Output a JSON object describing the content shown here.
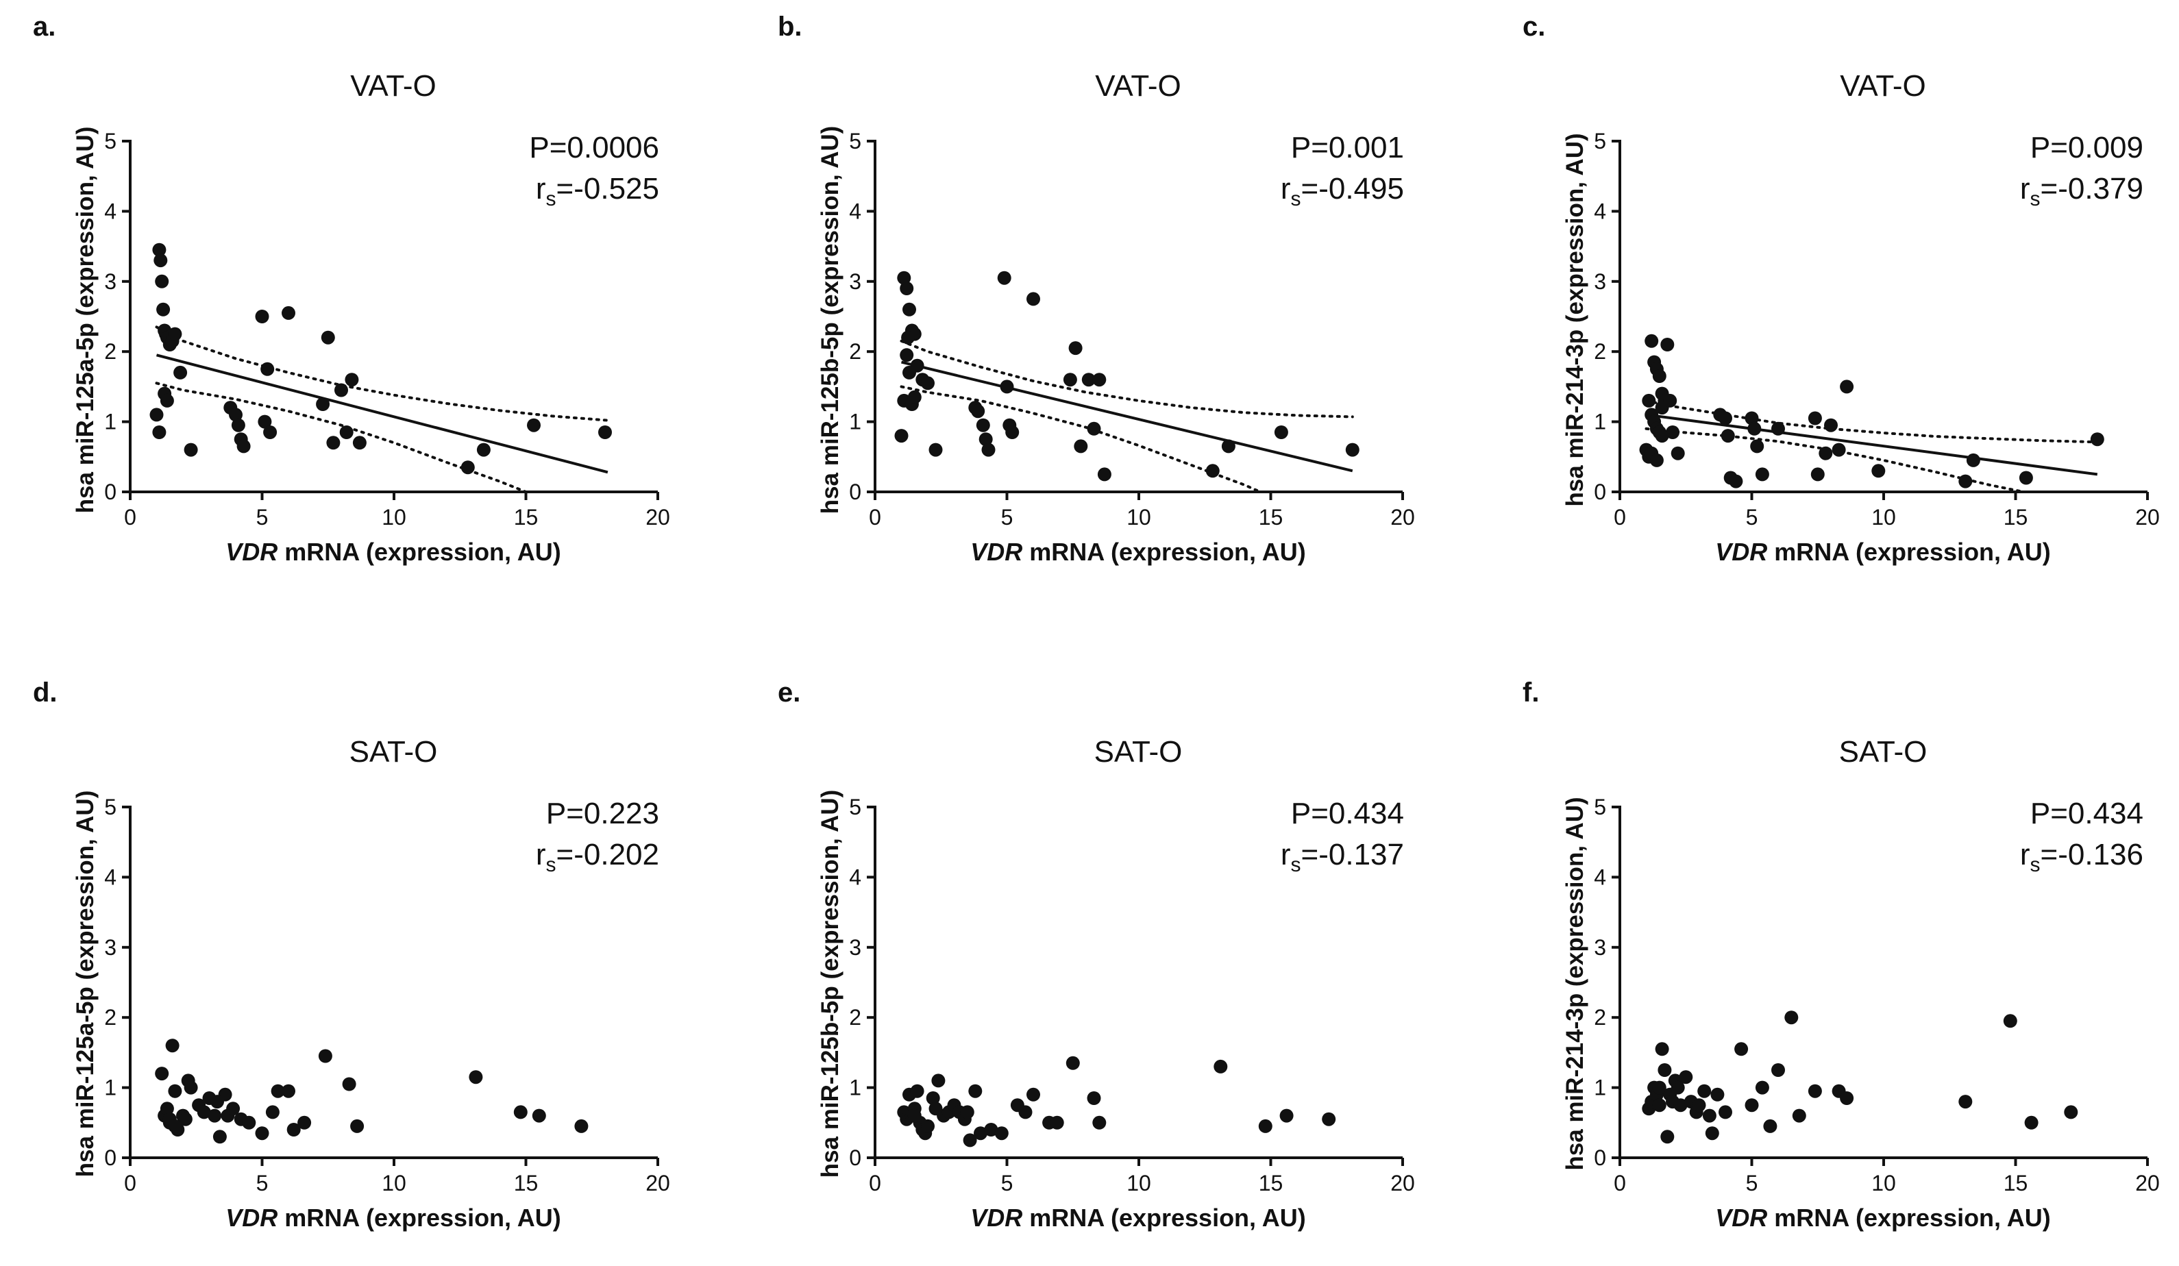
{
  "chart_data": [
    {
      "panel": "a.",
      "type": "scatter",
      "title": "VAT-O",
      "xlabel_italic": "VDR",
      "xlabel_rest": " mRNA (expression, AU)",
      "ylabel": "hsa miR-125a-5p (expression, AU)",
      "xlim": [
        0,
        20
      ],
      "ylim": [
        0,
        5
      ],
      "xticks": [
        0,
        5,
        10,
        15,
        20
      ],
      "yticks": [
        0,
        1,
        2,
        3,
        4,
        5
      ],
      "stat_p": "P=0.0006",
      "stat_r_main": "r",
      "stat_r_sub": "s",
      "stat_r_value": "=-0.525",
      "regression": {
        "x": [
          1.0,
          18.1
        ],
        "y": [
          1.95,
          0.28
        ]
      },
      "ci_upper": {
        "x": [
          1.0,
          2,
          4,
          6,
          8,
          10,
          12,
          14,
          16,
          18.1
        ],
        "y": [
          2.35,
          2.15,
          1.9,
          1.7,
          1.52,
          1.38,
          1.26,
          1.16,
          1.08,
          1.02
        ]
      },
      "ci_lower": {
        "x": [
          1.0,
          2,
          4,
          6,
          8,
          10,
          12,
          14,
          15.0
        ],
        "y": [
          1.55,
          1.45,
          1.32,
          1.15,
          0.95,
          0.7,
          0.42,
          0.15,
          0.0
        ]
      },
      "x": [
        1.1,
        1.15,
        1.2,
        1.25,
        1.3,
        1.35,
        1.4,
        1.45,
        1.5,
        1.6,
        1.7,
        1.0,
        1.1,
        1.3,
        1.4,
        1.9,
        2.3,
        3.8,
        4.0,
        4.1,
        4.2,
        4.3,
        5.0,
        5.1,
        5.2,
        5.3,
        6.0,
        7.3,
        7.5,
        7.7,
        8.0,
        8.2,
        8.4,
        8.7,
        12.8,
        13.4,
        15.3,
        18.0
      ],
      "y": [
        3.45,
        3.3,
        3.0,
        2.6,
        2.3,
        2.25,
        2.2,
        2.2,
        2.1,
        2.15,
        2.25,
        1.1,
        0.85,
        1.4,
        1.3,
        1.7,
        0.6,
        1.2,
        1.1,
        0.95,
        0.75,
        0.65,
        2.5,
        1.0,
        1.75,
        0.85,
        2.55,
        1.25,
        2.2,
        0.7,
        1.45,
        0.85,
        1.6,
        0.7,
        0.35,
        0.6,
        0.95,
        0.85
      ]
    },
    {
      "panel": "b.",
      "type": "scatter",
      "title": "VAT-O",
      "xlabel_italic": "VDR",
      "xlabel_rest": " mRNA (expression, AU)",
      "ylabel": "hsa miR-125b-5p (expression, AU)",
      "xlim": [
        0,
        20
      ],
      "ylim": [
        0,
        5
      ],
      "xticks": [
        0,
        5,
        10,
        15,
        20
      ],
      "yticks": [
        0,
        1,
        2,
        3,
        4,
        5
      ],
      "stat_p": "P=0.001",
      "stat_r_main": "r",
      "stat_r_sub": "s",
      "stat_r_value": "=-0.495",
      "regression": {
        "x": [
          1.0,
          18.1
        ],
        "y": [
          1.85,
          0.3
        ]
      },
      "ci_upper": {
        "x": [
          1.0,
          2,
          4,
          6,
          8,
          10,
          12,
          14,
          16,
          18.1
        ],
        "y": [
          2.15,
          2.0,
          1.78,
          1.58,
          1.42,
          1.3,
          1.2,
          1.13,
          1.09,
          1.07
        ]
      },
      "ci_lower": {
        "x": [
          1.0,
          2,
          4,
          6,
          8,
          10,
          12,
          14,
          14.6
        ],
        "y": [
          1.5,
          1.42,
          1.3,
          1.12,
          0.92,
          0.66,
          0.38,
          0.1,
          0.0
        ]
      },
      "x": [
        1.1,
        1.2,
        1.3,
        1.4,
        1.5,
        1.6,
        1.2,
        1.3,
        1.1,
        1.0,
        1.4,
        1.5,
        1.25,
        1.8,
        2.0,
        2.3,
        3.8,
        3.9,
        4.1,
        4.2,
        4.3,
        4.9,
        5.0,
        5.1,
        5.2,
        6.0,
        7.4,
        7.6,
        7.8,
        8.1,
        8.3,
        8.5,
        8.7,
        12.8,
        13.4,
        15.4,
        18.1
      ],
      "y": [
        3.05,
        2.9,
        2.6,
        2.3,
        2.25,
        1.8,
        1.95,
        1.7,
        1.3,
        0.8,
        1.25,
        1.35,
        2.2,
        1.6,
        1.55,
        0.6,
        1.2,
        1.15,
        0.95,
        0.75,
        0.6,
        3.05,
        1.5,
        0.95,
        0.85,
        2.75,
        1.6,
        2.05,
        0.65,
        1.6,
        0.9,
        1.6,
        0.25,
        0.3,
        0.65,
        0.85,
        0.6
      ]
    },
    {
      "panel": "c.",
      "type": "scatter",
      "title": "VAT-O",
      "xlabel_italic": "VDR",
      "xlabel_rest": " mRNA (expression, AU)",
      "ylabel": "hsa miR-214-3p (expression, AU)",
      "xlim": [
        0,
        20
      ],
      "ylim": [
        0,
        5
      ],
      "xticks": [
        0,
        5,
        10,
        15,
        20
      ],
      "yticks": [
        0,
        1,
        2,
        3,
        4,
        5
      ],
      "stat_p": "P=0.009",
      "stat_r_main": "r",
      "stat_r_sub": "s",
      "stat_r_value": "=-0.379",
      "regression": {
        "x": [
          1.0,
          18.1
        ],
        "y": [
          1.1,
          0.25
        ]
      },
      "ci_upper": {
        "x": [
          1.0,
          2,
          4,
          6,
          8,
          10,
          12,
          14,
          16,
          18.1
        ],
        "y": [
          1.3,
          1.22,
          1.1,
          0.98,
          0.9,
          0.84,
          0.79,
          0.76,
          0.73,
          0.71
        ]
      },
      "ci_lower": {
        "x": [
          1.0,
          2,
          4,
          6,
          8,
          10,
          12,
          14,
          15.3
        ],
        "y": [
          0.9,
          0.86,
          0.8,
          0.72,
          0.6,
          0.45,
          0.28,
          0.1,
          0.0
        ]
      },
      "x": [
        1.2,
        1.3,
        1.4,
        1.5,
        1.6,
        1.7,
        1.8,
        1.1,
        1.2,
        1.3,
        1.4,
        1.5,
        1.6,
        1.0,
        1.1,
        1.2,
        1.4,
        1.6,
        1.9,
        2.0,
        2.2,
        3.8,
        4.0,
        4.1,
        4.2,
        4.4,
        5.0,
        5.1,
        5.2,
        5.4,
        6.0,
        7.4,
        7.5,
        7.8,
        8.0,
        8.3,
        8.6,
        9.8,
        13.1,
        13.4,
        15.4,
        18.1
      ],
      "y": [
        2.15,
        1.85,
        1.75,
        1.65,
        1.4,
        1.3,
        2.1,
        1.3,
        1.1,
        1.0,
        0.9,
        0.85,
        0.8,
        0.6,
        0.5,
        0.55,
        0.45,
        1.2,
        1.3,
        0.85,
        0.55,
        1.1,
        1.05,
        0.8,
        0.2,
        0.15,
        1.05,
        0.9,
        0.65,
        0.25,
        0.9,
        1.05,
        0.25,
        0.55,
        0.95,
        0.6,
        1.5,
        0.3,
        0.15,
        0.45,
        0.2,
        0.75
      ]
    },
    {
      "panel": "d.",
      "type": "scatter",
      "title": "SAT-O",
      "xlabel_italic": "VDR",
      "xlabel_rest": " mRNA (expression, AU)",
      "ylabel": "hsa miR-125a-5p (expression, AU)",
      "xlim": [
        0,
        20
      ],
      "ylim": [
        0,
        5
      ],
      "xticks": [
        0,
        5,
        10,
        15,
        20
      ],
      "yticks": [
        0,
        1,
        2,
        3,
        4,
        5
      ],
      "stat_p": "P=0.223",
      "stat_r_main": "r",
      "stat_r_sub": "s",
      "stat_r_value": "=-0.202",
      "x": [
        1.2,
        1.3,
        1.5,
        1.6,
        1.7,
        1.8,
        2.0,
        2.2,
        2.3,
        1.4,
        1.5,
        2.6,
        2.8,
        3.0,
        3.2,
        3.4,
        3.6,
        3.7,
        3.9,
        4.2,
        4.5,
        5.0,
        5.4,
        5.6,
        6.0,
        6.2,
        6.6,
        7.4,
        8.3,
        8.6,
        13.1,
        14.8,
        15.5,
        17.1,
        1.7,
        2.1,
        3.3
      ],
      "y": [
        1.2,
        0.6,
        0.5,
        1.6,
        0.95,
        0.4,
        0.6,
        1.1,
        1.0,
        0.7,
        0.55,
        0.75,
        0.65,
        0.85,
        0.6,
        0.3,
        0.9,
        0.6,
        0.7,
        0.55,
        0.5,
        0.35,
        0.65,
        0.95,
        0.95,
        0.4,
        0.5,
        1.45,
        1.05,
        0.45,
        1.15,
        0.65,
        0.6,
        0.45,
        0.45,
        0.55,
        0.8
      ]
    },
    {
      "panel": "e.",
      "type": "scatter",
      "title": "SAT-O",
      "xlabel_italic": "VDR",
      "xlabel_rest": " mRNA (expression, AU)",
      "ylabel": "hsa miR-125b-5p (expression, AU)",
      "xlim": [
        0,
        20
      ],
      "ylim": [
        0,
        5
      ],
      "xticks": [
        0,
        5,
        10,
        15,
        20
      ],
      "yticks": [
        0,
        1,
        2,
        3,
        4,
        5
      ],
      "stat_p": "P=0.434",
      "stat_r_main": "r",
      "stat_r_sub": "s",
      "stat_r_value": "=-0.137",
      "x": [
        1.1,
        1.2,
        1.3,
        1.4,
        1.5,
        1.6,
        1.7,
        1.8,
        1.9,
        2.0,
        2.2,
        2.4,
        2.6,
        2.8,
        3.0,
        3.2,
        3.4,
        3.6,
        3.8,
        4.0,
        4.4,
        4.8,
        5.4,
        5.7,
        6.0,
        6.6,
        6.9,
        7.5,
        8.3,
        8.5,
        13.1,
        14.8,
        15.6,
        17.2,
        1.5,
        2.3,
        3.5
      ],
      "y": [
        0.65,
        0.55,
        0.9,
        0.6,
        0.7,
        0.95,
        0.5,
        0.4,
        0.35,
        0.45,
        0.85,
        1.1,
        0.6,
        0.65,
        0.75,
        0.65,
        0.55,
        0.25,
        0.95,
        0.35,
        0.4,
        0.35,
        0.75,
        0.65,
        0.9,
        0.5,
        0.5,
        1.35,
        0.85,
        0.5,
        1.3,
        0.45,
        0.6,
        0.55,
        0.6,
        0.7,
        0.65
      ]
    },
    {
      "panel": "f.",
      "type": "scatter",
      "title": "SAT-O",
      "xlabel_italic": "VDR",
      "xlabel_rest": " mRNA (expression, AU)",
      "ylabel": "hsa miR-214-3p (expression, AU)",
      "xlim": [
        0,
        20
      ],
      "ylim": [
        0,
        5
      ],
      "xticks": [
        0,
        5,
        10,
        15,
        20
      ],
      "yticks": [
        0,
        1,
        2,
        3,
        4,
        5
      ],
      "stat_p": "P=0.434",
      "stat_r_main": "r",
      "stat_r_sub": "s",
      "stat_r_value": "=-0.136",
      "x": [
        1.1,
        1.2,
        1.3,
        1.4,
        1.5,
        1.6,
        1.7,
        1.8,
        1.9,
        2.0,
        2.1,
        2.3,
        2.5,
        2.7,
        2.9,
        3.0,
        3.2,
        3.5,
        3.7,
        4.0,
        4.6,
        5.0,
        5.4,
        5.7,
        6.0,
        6.5,
        6.8,
        7.4,
        8.3,
        8.6,
        13.1,
        14.8,
        15.6,
        17.1,
        1.5,
        2.2,
        3.4
      ],
      "y": [
        0.7,
        0.8,
        1.0,
        0.9,
        0.75,
        1.55,
        1.25,
        0.3,
        0.9,
        0.8,
        1.1,
        0.75,
        1.15,
        0.8,
        0.65,
        0.75,
        0.95,
        0.35,
        0.9,
        0.65,
        1.55,
        0.75,
        1.0,
        0.45,
        1.25,
        2.0,
        0.6,
        0.95,
        0.95,
        0.85,
        0.8,
        1.95,
        0.5,
        0.65,
        1.0,
        1.0,
        0.6
      ]
    }
  ]
}
